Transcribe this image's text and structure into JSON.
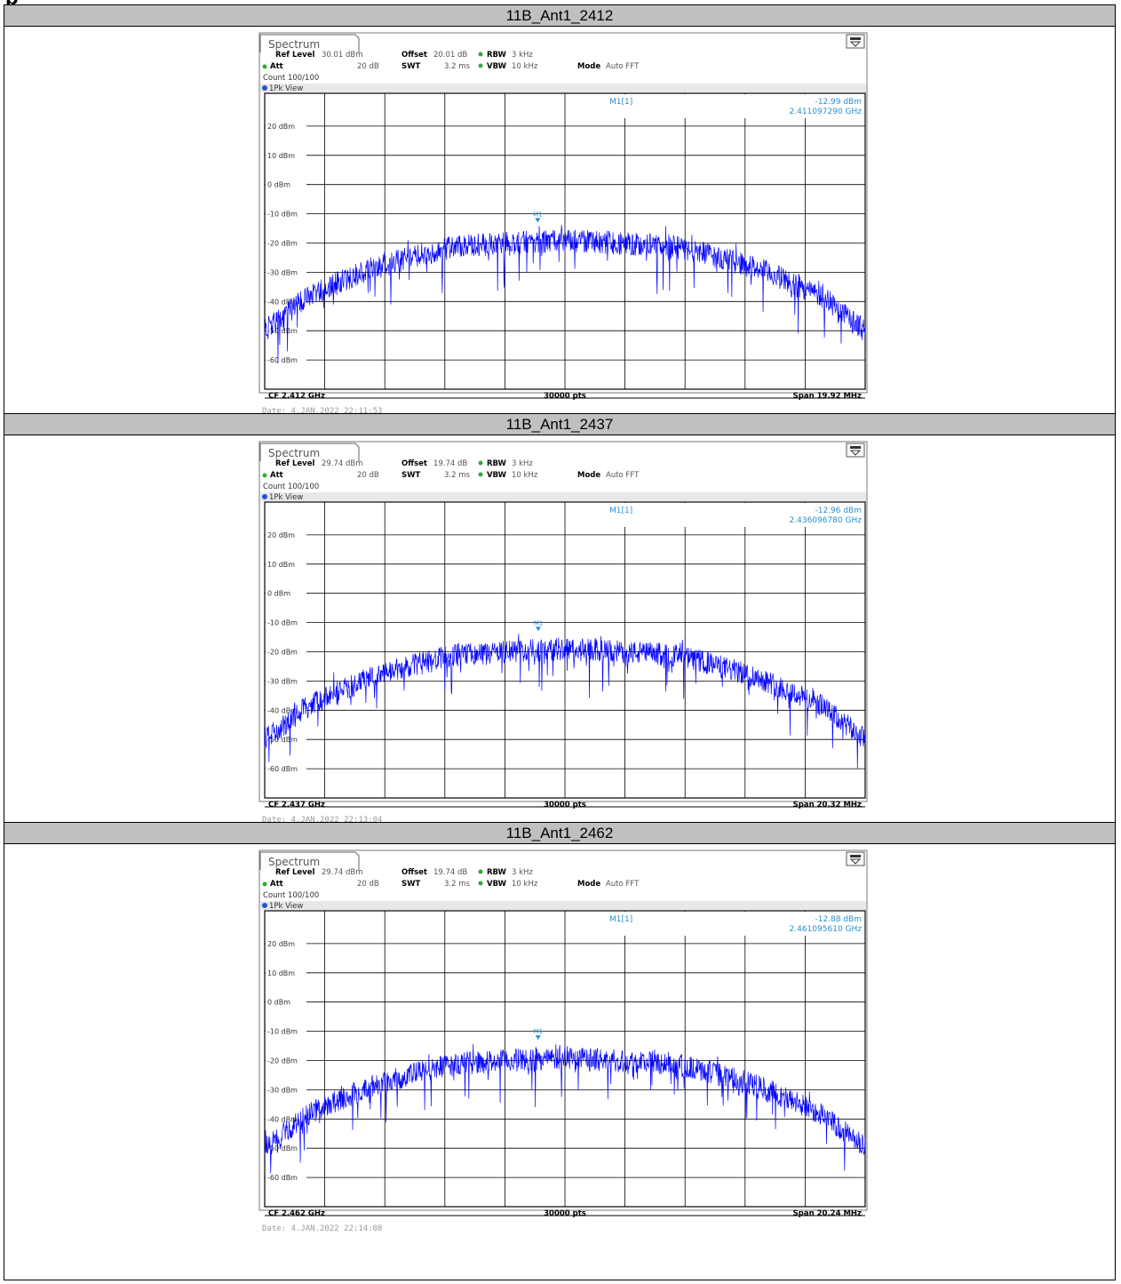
{
  "page": {
    "heading": "p"
  },
  "charts": [
    {
      "title": "11B_Ant1_2412",
      "tab": "Spectrum",
      "ref_level_label": "Ref Level",
      "ref_level": "30.01 dBm",
      "offset_label": "Offset",
      "offset": "20.01 dB",
      "rbw_label": "RBW",
      "rbw": "3 kHz",
      "att_label": "Att",
      "att": "20 dB",
      "swt_label": "SWT",
      "swt": "3.2 ms",
      "vbw_label": "VBW",
      "vbw": "10 kHz",
      "mode_label": "Mode",
      "mode": "Auto FFT",
      "count": "Count 100/100",
      "view": "1Pk View",
      "marker_label": "M1[1]",
      "marker_level": "-12.99 dBm",
      "marker_freq": "2.411097290 GHz",
      "marker_tag": "M1",
      "cf": "CF 2.412 GHz",
      "pts": "30000 pts",
      "span": "Span 19.92 MHz",
      "date": "Date: 4.JAN.2022  22:11:53",
      "y_tick_labels": [
        "20 dBm",
        "10 dBm",
        "0 dBm",
        "-10 dBm",
        "-20 dBm",
        "-30 dBm",
        "-40 dBm",
        "-50 dBm",
        "-60 dBm"
      ]
    },
    {
      "title": "11B_Ant1_2437",
      "tab": "Spectrum",
      "ref_level_label": "Ref Level",
      "ref_level": "29.74 dBm",
      "offset_label": "Offset",
      "offset": "19.74 dB",
      "rbw_label": "RBW",
      "rbw": "3 kHz",
      "att_label": "Att",
      "att": "20 dB",
      "swt_label": "SWT",
      "swt": "3.2 ms",
      "vbw_label": "VBW",
      "vbw": "10 kHz",
      "mode_label": "Mode",
      "mode": "Auto FFT",
      "count": "Count 100/100",
      "view": "1Pk View",
      "marker_label": "M1[1]",
      "marker_level": "-12.96 dBm",
      "marker_freq": "2.436096780 GHz",
      "marker_tag": "M1",
      "cf": "CF 2.437 GHz",
      "pts": "30000 pts",
      "span": "Span 20.32 MHz",
      "date": "Date: 4.JAN.2022  22:13:04",
      "y_tick_labels": [
        "20 dBm",
        "10 dBm",
        "0 dBm",
        "-10 dBm",
        "-20 dBm",
        "-30 dBm",
        "-40 dBm",
        "-50 dBm",
        "-60 dBm"
      ]
    },
    {
      "title": "11B_Ant1_2462",
      "tab": "Spectrum",
      "ref_level_label": "Ref Level",
      "ref_level": "29.74 dBm",
      "offset_label": "Offset",
      "offset": "19.74 dB",
      "rbw_label": "RBW",
      "rbw": "3 kHz",
      "att_label": "Att",
      "att": "20 dB",
      "swt_label": "SWT",
      "swt": "3.2 ms",
      "vbw_label": "VBW",
      "vbw": "10 kHz",
      "mode_label": "Mode",
      "mode": "Auto FFT",
      "count": "Count 100/100",
      "view": "1Pk View",
      "marker_label": "M1[1]",
      "marker_level": "-12.88 dBm",
      "marker_freq": "2.461095610 GHz",
      "marker_tag": "M1",
      "cf": "CF 2.462 GHz",
      "pts": "30000 pts",
      "span": "Span 20.24 MHz",
      "date": "Date: 4.JAN.2022  22:14:08",
      "y_tick_labels": [
        "20 dBm",
        "10 dBm",
        "0 dBm",
        "-10 dBm",
        "-20 dBm",
        "-30 dBm",
        "-40 dBm",
        "-50 dBm",
        "-60 dBm"
      ]
    }
  ],
  "chart_data": [
    {
      "type": "line",
      "title": "11B_Ant1_2412",
      "xlabel": "",
      "ylabel": "",
      "ylim": [
        -70,
        30
      ],
      "xlim": [
        2.40204,
        2.42196
      ],
      "center_freq_ghz": 2.412,
      "span_mhz": 19.92,
      "grid": true,
      "trace_color": "#0000ff",
      "marker": {
        "name": "M1",
        "freq_ghz": 2.41109729,
        "level_dbm": -12.99
      },
      "envelope_freq_offset_mhz": [
        -9.96,
        -8.5,
        -6.5,
        -4.8,
        -3.5,
        0,
        3.5,
        4.8,
        6.5,
        8.5,
        9.96
      ],
      "envelope_level_dbm": [
        -50,
        -38,
        -29,
        -24,
        -21,
        -19,
        -21,
        -24,
        -29,
        -38,
        -50
      ]
    },
    {
      "type": "line",
      "title": "11B_Ant1_2437",
      "xlabel": "",
      "ylabel": "",
      "ylim": [
        -70,
        30
      ],
      "xlim": [
        2.42684,
        2.44716
      ],
      "center_freq_ghz": 2.437,
      "span_mhz": 20.32,
      "grid": true,
      "trace_color": "#0000ff",
      "marker": {
        "name": "M1",
        "freq_ghz": 2.43609678,
        "level_dbm": -12.96
      },
      "envelope_freq_offset_mhz": [
        -10.16,
        -8.6,
        -6.6,
        -4.9,
        -3.6,
        0,
        3.6,
        4.9,
        6.6,
        8.6,
        10.16
      ],
      "envelope_level_dbm": [
        -50,
        -38,
        -29,
        -24,
        -21,
        -19,
        -21,
        -24,
        -29,
        -38,
        -50
      ]
    },
    {
      "type": "line",
      "title": "11B_Ant1_2462",
      "xlabel": "",
      "ylabel": "",
      "ylim": [
        -70,
        30
      ],
      "xlim": [
        2.45188,
        2.47212
      ],
      "center_freq_ghz": 2.462,
      "span_mhz": 20.24,
      "grid": true,
      "trace_color": "#0000ff",
      "marker": {
        "name": "M1",
        "freq_ghz": 2.46109561,
        "level_dbm": -12.88
      },
      "envelope_freq_offset_mhz": [
        -10.12,
        -8.6,
        -6.6,
        -4.9,
        -3.6,
        0,
        3.6,
        4.9,
        6.6,
        8.6,
        10.12
      ],
      "envelope_level_dbm": [
        -50,
        -38,
        -29,
        -24,
        -21,
        -19,
        -21,
        -24,
        -29,
        -38,
        -50
      ]
    }
  ]
}
